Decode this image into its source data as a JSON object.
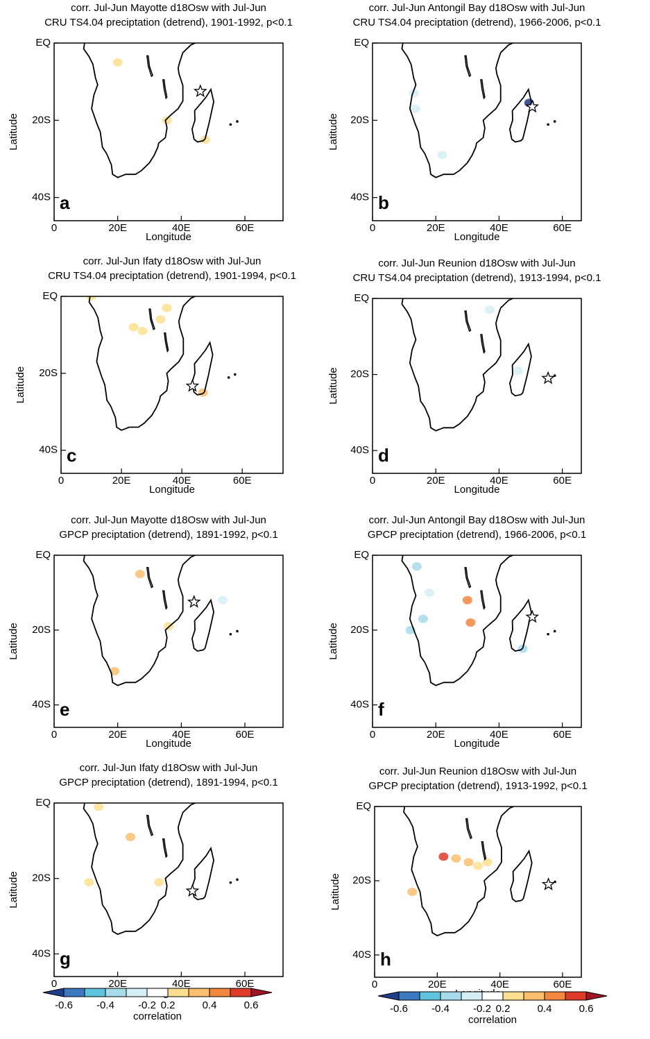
{
  "axes": {
    "xlabel": "Longitude",
    "ylabel": "Latitude",
    "xticks": [
      0,
      {
        "value": 20,
        "label": "20E"
      },
      {
        "value": 40,
        "label": "40E"
      },
      {
        "value": 60,
        "label": "60E"
      }
    ],
    "yticks": [
      {
        "value": 0,
        "label": "EQ"
      },
      {
        "value": -20,
        "label": "20S"
      },
      {
        "value": -40,
        "label": "40S"
      }
    ]
  },
  "panels": [
    {
      "title": [
        "corr. Jul-Jun Mayotte d18Osw with Jul-Jun",
        "CRU TS4.04 preciptation (detrend), 1901-1992, p<0.1"
      ],
      "letter": "a",
      "xlim": [
        0,
        72
      ],
      "ylim": [
        -46,
        0
      ],
      "site": {
        "lon": 46,
        "lat": -12.5
      },
      "patches": [
        {
          "lon": 20,
          "lat": -5,
          "value": 0.25
        },
        {
          "lon": 35.5,
          "lat": -20,
          "value": 0.25
        },
        {
          "lon": 47.5,
          "lat": -25,
          "value": 0.25
        }
      ]
    },
    {
      "title": [
        "corr. Jul-Jun Antongil Bay d18Osw with Jul-Jun",
        "CRU TS4.04 preciptation (detrend), 1966-2006, p<0.1"
      ],
      "letter": "b",
      "xlim": [
        0,
        66
      ],
      "ylim": [
        -46,
        0
      ],
      "site": {
        "lon": 50.5,
        "lat": -16.5
      },
      "patches": [
        {
          "lon": 13,
          "lat": -13,
          "value": -0.25
        },
        {
          "lon": 13.5,
          "lat": -17,
          "value": -0.25
        },
        {
          "lon": 49.5,
          "lat": -15.5,
          "value": -0.65
        },
        {
          "lon": 22,
          "lat": -29,
          "value": -0.25
        }
      ]
    },
    {
      "title": [
        "corr. Jul-Jun Ifaty d18Osw with Jul-Jun",
        "CRU TS4.04 preciptation (detrend), 1901-1994, p<0.1"
      ],
      "letter": "c",
      "xlim": [
        0,
        73.5
      ],
      "ylim": [
        -46,
        0
      ],
      "site": {
        "lon": 43.5,
        "lat": -23.3
      },
      "patches": [
        {
          "lon": 24,
          "lat": -8,
          "value": 0.25
        },
        {
          "lon": 27,
          "lat": -9,
          "value": 0.25
        },
        {
          "lon": 33,
          "lat": -6,
          "value": 0.25
        },
        {
          "lon": 35,
          "lat": -3,
          "value": 0.25
        },
        {
          "lon": 47,
          "lat": -25,
          "value": 0.35
        },
        {
          "lon": 10,
          "lat": 0,
          "value": 0.25
        }
      ]
    },
    {
      "title": [
        "corr. Jul-Jun Reunion d18Osw with Jul-Jun",
        "CRU TS4.04 preciptation (detrend), 1913-1994, p<0.1"
      ],
      "letter": "d",
      "xlim": [
        0,
        66
      ],
      "ylim": [
        -46,
        0
      ],
      "site": {
        "lon": 55.5,
        "lat": -21
      },
      "patches": [
        {
          "lon": 46,
          "lat": -19,
          "value": -0.25
        },
        {
          "lon": 37,
          "lat": -3,
          "value": -0.25
        }
      ]
    },
    {
      "title": [
        "corr. Jul-Jun Mayotte d18Osw with Jul-Jun",
        "GPCP preciptation (detrend), 1891-1992, p<0.1"
      ],
      "letter": "e",
      "xlim": [
        0,
        72
      ],
      "ylim": [
        -46,
        0
      ],
      "site": {
        "lon": 44,
        "lat": -12.5
      },
      "patches": [
        {
          "lon": 27,
          "lat": -5,
          "value": 0.35
        },
        {
          "lon": 36,
          "lat": -19,
          "value": 0.25
        },
        {
          "lon": 19,
          "lat": -31,
          "value": 0.35
        },
        {
          "lon": 53,
          "lat": -12,
          "value": -0.25
        }
      ]
    },
    {
      "title": [
        "corr. Jul-Jun Antongil Bay d18Osw with Jul-Jun",
        "GPCP preciptation (detrend), 1966-2006, p<0.1"
      ],
      "letter": "f",
      "xlim": [
        0,
        66
      ],
      "ylim": [
        -46,
        0
      ],
      "site": {
        "lon": 50.5,
        "lat": -16.5
      },
      "patches": [
        {
          "lon": 31,
          "lat": -18,
          "value": 0.45
        },
        {
          "lon": 30,
          "lat": -12,
          "value": 0.45
        },
        {
          "lon": 16,
          "lat": -17,
          "value": -0.35
        },
        {
          "lon": 12,
          "lat": -20,
          "value": -0.35
        },
        {
          "lon": 14,
          "lat": -3,
          "value": -0.35
        },
        {
          "lon": 47.5,
          "lat": -25,
          "value": -0.35
        },
        {
          "lon": 18,
          "lat": -10,
          "value": -0.25
        }
      ]
    },
    {
      "title": [
        "corr. Jul-Jun Ifaty d18Osw with Jul-Jun",
        "GPCP preciptation (detrend), 1891-1994, p<0.1"
      ],
      "letter": "g",
      "xlim": [
        0,
        72
      ],
      "ylim": [
        -46,
        0
      ],
      "site": {
        "lon": 43.5,
        "lat": -23.3
      },
      "patches": [
        {
          "lon": 24,
          "lat": -9,
          "value": 0.35
        },
        {
          "lon": 14,
          "lat": -1,
          "value": 0.25
        },
        {
          "lon": 33,
          "lat": -21,
          "value": 0.25
        },
        {
          "lon": 11,
          "lat": -21,
          "value": 0.25
        }
      ]
    },
    {
      "title": [
        "corr. Jul-Jun Reunion d18Osw with Jul-Jun",
        "GPCP preciptation (detrend), 1913-1992, p<0.1"
      ],
      "letter": "h",
      "xlim": [
        0,
        66
      ],
      "ylim": [
        -46,
        0
      ],
      "site": {
        "lon": 55.5,
        "lat": -21
      },
      "patches": [
        {
          "lon": 22,
          "lat": -13.5,
          "value": 0.55
        },
        {
          "lon": 26,
          "lat": -14,
          "value": 0.35
        },
        {
          "lon": 30,
          "lat": -15,
          "value": 0.35
        },
        {
          "lon": 12,
          "lat": -23,
          "value": 0.35
        },
        {
          "lon": 33,
          "lat": -16,
          "value": 0.25
        },
        {
          "lon": 36,
          "lat": -15,
          "value": 0.25
        }
      ]
    }
  ],
  "colorbar": {
    "label": "correlation",
    "levels": [
      -0.6,
      -0.5,
      -0.4,
      -0.3,
      -0.2,
      0.2,
      0.3,
      0.4,
      0.5,
      0.6
    ],
    "colors": [
      "#1f3d8a",
      "#3b78c0",
      "#5ec3dd",
      "#a6dbe9",
      "#d5eef5",
      "#ffffff",
      "#fde08f",
      "#fbbf6e",
      "#f3873e",
      "#de3b2a",
      "#a01427"
    ],
    "ticks": [
      -0.6,
      -0.4,
      -0.2,
      0.2,
      0.4,
      0.6
    ]
  }
}
